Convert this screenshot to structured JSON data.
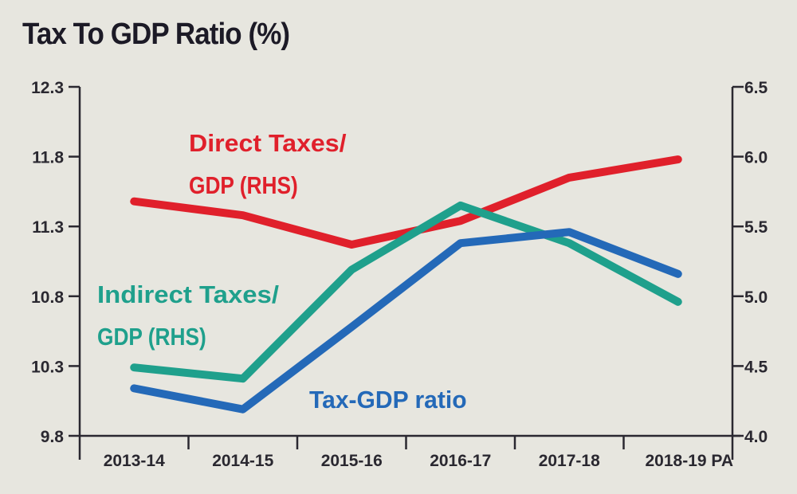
{
  "chart_data": {
    "type": "line",
    "title": "Tax To GDP Ratio (%)",
    "xlabel": "",
    "ylabel": "",
    "categories": [
      "2013-14",
      "2014-15",
      "2015-16",
      "2016-17",
      "2017-18",
      "2018-19 PA"
    ],
    "y_left": {
      "ylim": [
        9.8,
        12.3
      ],
      "ticks": [
        "12.3",
        "11.8",
        "11.3",
        "10.8",
        "10.3",
        "9.8"
      ],
      "tick_values": [
        12.3,
        11.8,
        11.3,
        10.8,
        10.3,
        9.8
      ]
    },
    "y_right": {
      "ylim": [
        4.0,
        6.5
      ],
      "ticks": [
        "6.5",
        "6.0",
        "5.5",
        "5.0",
        "4.5",
        "4.0"
      ],
      "tick_values": [
        6.5,
        6.0,
        5.5,
        5.0,
        4.5,
        4.0
      ]
    },
    "grid": false,
    "series": [
      {
        "name": "Direct Taxes/ GDP (RHS)",
        "label_lines": [
          "Direct Taxes/",
          "GDP (RHS)"
        ],
        "axis": "right",
        "color": "#e0202b",
        "values": [
          5.68,
          5.58,
          5.37,
          5.54,
          5.85,
          5.98
        ]
      },
      {
        "name": "Indirect Taxes/ GDP (RHS)",
        "label_lines": [
          "Indirect Taxes/",
          "GDP (RHS)"
        ],
        "axis": "right",
        "color": "#1fa08c",
        "values": [
          4.49,
          4.41,
          5.19,
          5.65,
          5.38,
          4.96
        ]
      },
      {
        "name": "Tax-GDP ratio",
        "label_lines": [
          "Tax-GDP ratio"
        ],
        "axis": "left",
        "color": "#2469b8",
        "values": [
          10.14,
          9.99,
          10.58,
          11.18,
          11.26,
          10.96
        ]
      }
    ]
  }
}
